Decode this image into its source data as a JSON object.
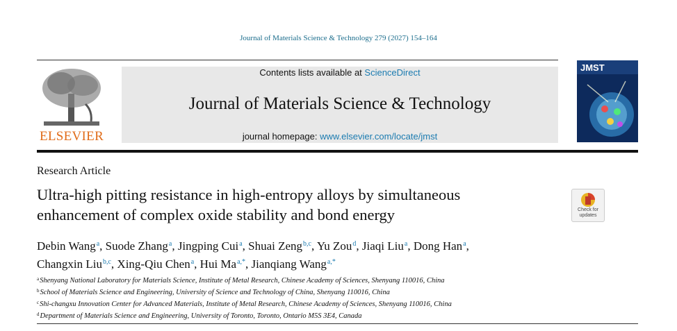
{
  "citation": "Journal of Materials Science & Technology 279 (2027) 154–164",
  "header": {
    "contents_prefix": "Contents lists available at ",
    "contents_link": "ScienceDirect",
    "journal_title": "Journal of Materials Science & Technology",
    "homepage_prefix": "journal homepage: ",
    "homepage_link": "www.elsevier.com/locate/jmst",
    "publisher": "ELSEVIER",
    "cover_title": "JMST"
  },
  "article_type": "Research Article",
  "title_lines": [
    "Ultra-high pitting resistance in high-entropy alloys by simultaneous",
    "enhancement of complex oxide stability and bond energy"
  ],
  "check_updates": [
    "Check for",
    "updates"
  ],
  "authors": [
    [
      {
        "name": "Debin Wang",
        "sup": "a"
      },
      {
        "name": "Suode Zhang",
        "sup": "a"
      },
      {
        "name": "Jingping Cui",
        "sup": "a"
      },
      {
        "name": "Shuai Zeng",
        "sup": "b,c"
      },
      {
        "name": "Yu Zou",
        "sup": "d"
      },
      {
        "name": "Jiaqi Liu",
        "sup": "a"
      },
      {
        "name": "Dong Han",
        "sup": "a"
      }
    ],
    [
      {
        "name": "Changxin Liu",
        "sup": "b,c"
      },
      {
        "name": "Xing-Qiu Chen",
        "sup": "a"
      },
      {
        "name": "Hui Ma",
        "sup": "a,*"
      },
      {
        "name": "Jianqiang Wang",
        "sup": "a,*"
      }
    ]
  ],
  "affiliations": [
    {
      "mark": "a",
      "text": "Shenyang National Laboratory for Materials Science, Institute of Metal Research, Chinese Academy of Sciences, Shenyang 110016, China"
    },
    {
      "mark": "b",
      "text": "School of Materials Science and Engineering, University of Science and Technology of China, Shenyang 110016, China"
    },
    {
      "mark": "c",
      "text": "Shi-changxu Innovation Center for Advanced Materials, Institute of Metal Research, Chinese Academy of Sciences, Shenyang 110016, China"
    },
    {
      "mark": "d",
      "text": "Department of Materials Science and Engineering, University of Toronto, Toronto, Ontario M5S 3E4, Canada"
    }
  ]
}
